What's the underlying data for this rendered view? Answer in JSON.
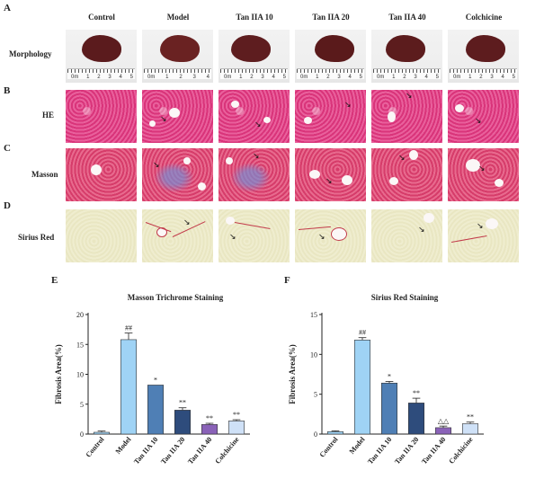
{
  "panel_letters": {
    "a": "A",
    "b": "B",
    "c": "C",
    "d": "D",
    "e": "E",
    "f": "F"
  },
  "groups": [
    "Control",
    "Model",
    "Tan IIA 10",
    "Tan IIA 20",
    "Tan IIA 40",
    "Colchicine"
  ],
  "row_labels": {
    "morphology": "Morphology",
    "he": "HE",
    "masson": "Masson",
    "sirius": "Sirius Red"
  },
  "ruler_numbers": [
    "1",
    "2",
    "3",
    "4",
    "5"
  ],
  "ruler_prefix": "0m",
  "colors": {
    "liver": "#5a1a1c",
    "bar_colors": [
      "#9fd3f5",
      "#9fd3f5",
      "#4f7fb5",
      "#2e4c7c",
      "#8a62b8",
      "#cfe1f7"
    ],
    "sirius_bar_colors": [
      "#9fd3f5",
      "#9fd3f5",
      "#4f7fb5",
      "#2e4c7c",
      "#8a62b8",
      "#cfe1f7"
    ]
  },
  "chart_data": [
    {
      "type": "bar",
      "title": "Masson Trichrome Staining",
      "ylabel": "Fibrosis Area(%)",
      "xlabel": "",
      "categories": [
        "Control",
        "Model",
        "Tan IIA 10",
        "Tan IIA 20",
        "Tan IIA 40",
        "Colchicine"
      ],
      "values": [
        0.3,
        15.8,
        8.2,
        4.0,
        1.6,
        2.2
      ],
      "errors": [
        0.2,
        1.1,
        0.0,
        0.4,
        0.2,
        0.2
      ],
      "annotations": [
        "",
        "##",
        "*",
        "**",
        "**",
        "**"
      ],
      "ylim": [
        0,
        20
      ],
      "yticks": [
        "0",
        "5",
        "10",
        "15",
        "20"
      ]
    },
    {
      "type": "bar",
      "title": "Sirius Red Staining",
      "ylabel": "Fibrosis Area(%)",
      "xlabel": "",
      "categories": [
        "Control",
        "Model",
        "Tan IIA 10",
        "Tan IIA 20",
        "Tan IIA 40",
        "Colchicine"
      ],
      "values": [
        0.3,
        11.8,
        6.4,
        3.9,
        0.8,
        1.3
      ],
      "errors": [
        0.1,
        0.3,
        0.2,
        0.6,
        0.2,
        0.2
      ],
      "annotations": [
        "",
        "##",
        "*",
        "**",
        "△△",
        "**"
      ],
      "ylim": [
        0,
        15
      ],
      "yticks": [
        "0",
        "5",
        "10",
        "15"
      ]
    }
  ]
}
